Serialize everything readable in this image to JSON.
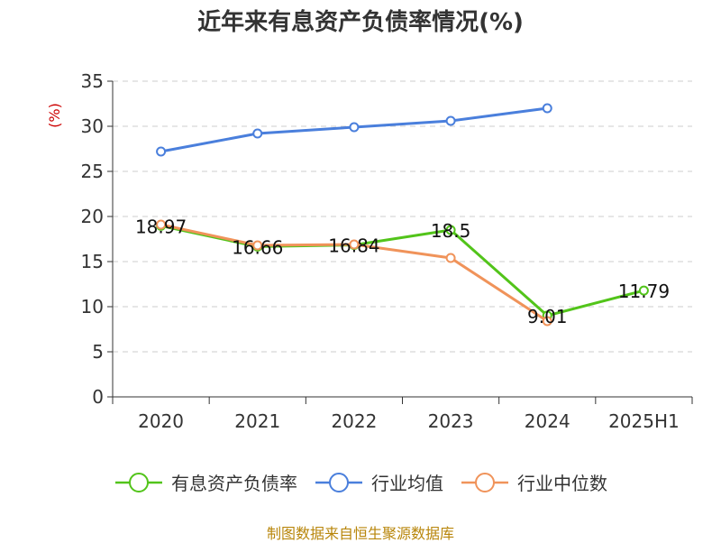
{
  "title": "近年来有息资产负债率情况(%)",
  "source": "制图数据来自恒生聚源数据库",
  "chart_data": {
    "type": "line",
    "title": "近年来有息资产负债率情况(%)",
    "ylabel": "(%)",
    "xlabel": "",
    "ylim": [
      0,
      35
    ],
    "yticks": [
      0,
      5,
      10,
      15,
      20,
      25,
      30,
      35
    ],
    "grid": true,
    "legend_position": "bottom",
    "categories": [
      "2020",
      "2021",
      "2022",
      "2023",
      "2024",
      "2025H1"
    ],
    "series": [
      {
        "name": "有息资产负债率",
        "color": "#52c41a",
        "values": [
          18.97,
          16.66,
          16.84,
          18.5,
          9.01,
          11.79
        ],
        "labels": [
          "18.97",
          "16.66",
          "16.84",
          "18.5",
          "9.01",
          "11.79"
        ]
      },
      {
        "name": "行业均值",
        "color": "#4a7fdc",
        "values": [
          27.2,
          29.2,
          29.9,
          30.6,
          32.0,
          null
        ]
      },
      {
        "name": "行业中位数",
        "color": "#f0935a",
        "values": [
          19.1,
          16.8,
          16.9,
          15.4,
          8.4,
          null
        ]
      }
    ]
  }
}
